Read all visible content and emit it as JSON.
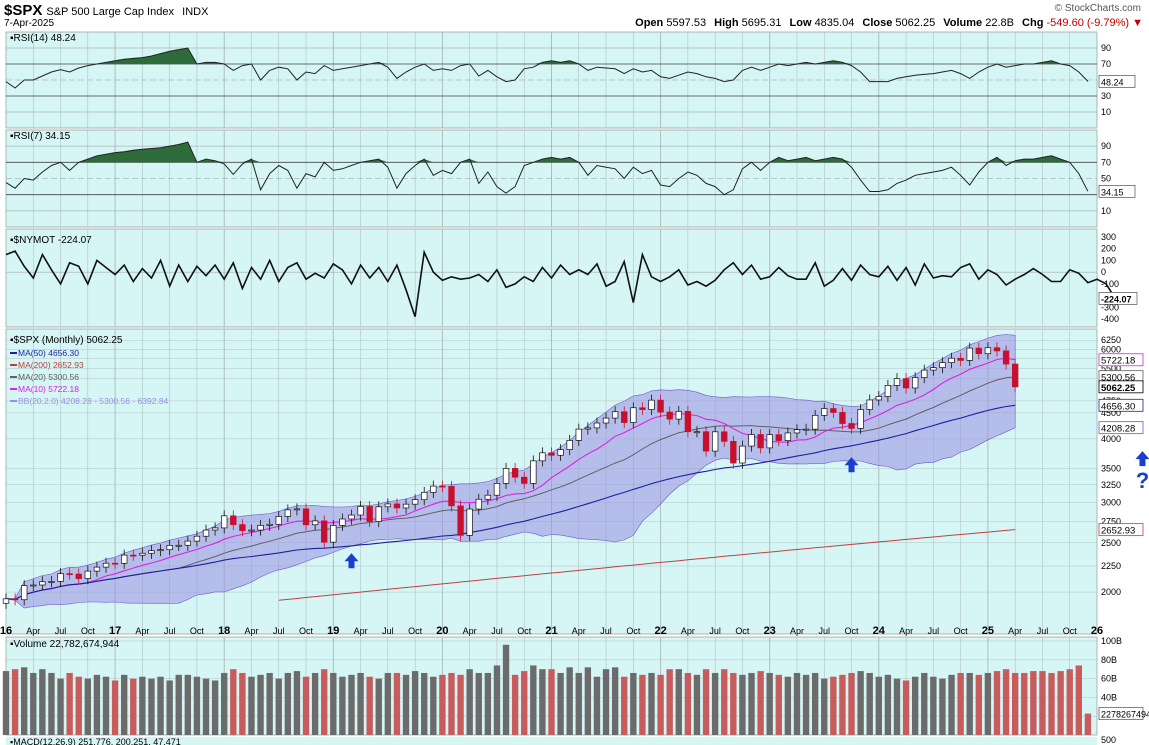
{
  "header": {
    "symbol": "$SPX",
    "name": "S&P 500 Large Cap Index",
    "exchange": "INDX",
    "date": "7-Apr-2025",
    "watermark": "© StockCharts.com",
    "open_label": "Open",
    "open": "5597.53",
    "high_label": "High",
    "high": "5695.31",
    "low_label": "Low",
    "low": "4835.04",
    "close_label": "Close",
    "close": "5062.25",
    "volume_label": "Volume",
    "volume": "22.8B",
    "chg_label": "Chg",
    "chg": "-549.60 (-9.79%)",
    "chg_arrow": "▼"
  },
  "colors": {
    "panel_bg": "#d6f5f5",
    "grid": "#a9b9b9",
    "rsi_fill": "#2e6b3a",
    "candle_up": "#ffffff",
    "candle_down": "#c8102e",
    "ma50": "#1f1f9e",
    "ma200": "#c04040",
    "ma20": "#606060",
    "ma10": "#e020e0",
    "bb_fill": "#9b8fe0",
    "vol_up": "#6b6b6b",
    "vol_down": "#c85c5c",
    "arrow": "#1a3fd0"
  },
  "chart_data": [
    {
      "type": "line",
      "title": "RSI(14) 48.24",
      "last_value": "48.24",
      "ylim": [
        0,
        100
      ],
      "ticks": [
        "90",
        "70",
        "50",
        "30",
        "10"
      ],
      "overbought": 70,
      "oversold": 30,
      "values": [
        48,
        40,
        50,
        50,
        55,
        60,
        63,
        60,
        65,
        68,
        70,
        72,
        74,
        76,
        77,
        78,
        80,
        83,
        86,
        88,
        90,
        70,
        72,
        72,
        70,
        62,
        68,
        70,
        50,
        62,
        66,
        64,
        50,
        60,
        58,
        68,
        62,
        64,
        66,
        68,
        70,
        72,
        66,
        52,
        60,
        66,
        70,
        62,
        64,
        62,
        68,
        70,
        55,
        62,
        54,
        48,
        50,
        64,
        66,
        72,
        74,
        72,
        74,
        70,
        62,
        66,
        65,
        64,
        58,
        64,
        60,
        62,
        54,
        52,
        56,
        60,
        58,
        54,
        52,
        48,
        50,
        62,
        66,
        62,
        66,
        70,
        68,
        70,
        72,
        70,
        72,
        74,
        72,
        68,
        60,
        48,
        48,
        48,
        52,
        54,
        56,
        57,
        58,
        60,
        62,
        58,
        52,
        60,
        66,
        70,
        66,
        68,
        70,
        70,
        72,
        74,
        70,
        68,
        60,
        48.24
      ]
    },
    {
      "type": "line",
      "title": "RSI(7) 34.15",
      "last_value": "34.15",
      "ylim": [
        0,
        100
      ],
      "ticks": [
        "90",
        "70",
        "50",
        "30",
        "10"
      ],
      "overbought": 70,
      "oversold": 30,
      "values": [
        45,
        38,
        50,
        48,
        58,
        66,
        70,
        60,
        70,
        74,
        78,
        80,
        82,
        83,
        85,
        86,
        87,
        88,
        90,
        92,
        95,
        70,
        74,
        72,
        68,
        55,
        68,
        74,
        36,
        56,
        66,
        60,
        38,
        56,
        52,
        70,
        60,
        62,
        66,
        70,
        72,
        74,
        64,
        38,
        56,
        66,
        74,
        54,
        60,
        56,
        70,
        74,
        44,
        58,
        40,
        32,
        40,
        66,
        70,
        74,
        76,
        74,
        76,
        70,
        54,
        66,
        64,
        62,
        50,
        64,
        56,
        60,
        42,
        40,
        50,
        58,
        54,
        44,
        40,
        30,
        36,
        62,
        70,
        60,
        70,
        76,
        72,
        74,
        76,
        72,
        74,
        76,
        74,
        64,
        48,
        34,
        34,
        36,
        44,
        48,
        54,
        56,
        58,
        60,
        64,
        54,
        42,
        58,
        70,
        76,
        66,
        72,
        74,
        74,
        76,
        78,
        74,
        70,
        56,
        34.15
      ]
    },
    {
      "type": "line",
      "title": "$NYMOT -224.07",
      "last_value": "-224.07",
      "ylim": [
        -400,
        300
      ],
      "ticks": [
        "300",
        "200",
        "100",
        "0",
        "-100",
        "-200",
        "-300",
        "-400"
      ],
      "values": [
        150,
        180,
        50,
        -50,
        150,
        20,
        -100,
        80,
        50,
        -100,
        100,
        40,
        -20,
        60,
        -80,
        30,
        -50,
        100,
        -120,
        60,
        -80,
        50,
        -30,
        60,
        -60,
        80,
        -140,
        40,
        -60,
        100,
        -80,
        40,
        80,
        -60,
        -10,
        -50,
        70,
        20,
        -100,
        60,
        -50,
        40,
        -80,
        60,
        -150,
        -380,
        170,
        0,
        -70,
        -40,
        -60,
        -50,
        -20,
        -80,
        20,
        -130,
        -100,
        -40,
        -80,
        40,
        -50,
        60,
        -20,
        20,
        -20,
        70,
        -120,
        -80,
        90,
        -260,
        150,
        -40,
        -80,
        -40,
        20,
        -110,
        -80,
        -120,
        -70,
        20,
        80,
        -20,
        60,
        -60,
        -40,
        40,
        -30,
        -60,
        -60,
        80,
        -120,
        -70,
        30,
        -70,
        60,
        -20,
        -40,
        50,
        -70,
        40,
        -110,
        70,
        -50,
        -30,
        -40,
        40,
        70,
        -60,
        20,
        -20,
        -110,
        -60,
        -20,
        30,
        -20,
        -80,
        -80,
        20,
        -10,
        -90,
        -60,
        -100,
        -224.07
      ]
    },
    {
      "type": "candlestick",
      "title": "$SPX (Monthly) 5062.25",
      "ylim": [
        1700,
        6400
      ],
      "y_ticks": [
        "6250",
        "6000",
        "5750",
        "5500",
        "5250",
        "4750",
        "4500",
        "4000",
        "3500",
        "3250",
        "3000",
        "2750",
        "2500",
        "2250",
        "2000"
      ],
      "x_tick_labels": [
        "16",
        "Apr",
        "Jul",
        "Oct",
        "17",
        "Apr",
        "Jul",
        "Oct",
        "18",
        "Apr",
        "Jul",
        "Oct",
        "19",
        "Apr",
        "Jul",
        "Oct",
        "20",
        "Apr",
        "Jul",
        "Oct",
        "21",
        "Apr",
        "Jul",
        "Oct",
        "22",
        "Apr",
        "Jul",
        "Oct",
        "23",
        "Apr",
        "Jul",
        "Oct",
        "24",
        "Apr",
        "Jul",
        "Oct",
        "25",
        "Apr",
        "Jul",
        "Oct",
        "26"
      ],
      "x_tick_major": [
        "16",
        "17",
        "18",
        "19",
        "20",
        "21",
        "22",
        "23",
        "24",
        "25",
        "26"
      ],
      "x_range_months": [
        0,
        120
      ],
      "overlays": [
        {
          "name": "MA(50)",
          "last": "4656.30",
          "color_key": "ma50"
        },
        {
          "name": "MA(200)",
          "last": "2652.93",
          "color_key": "ma200"
        },
        {
          "name": "MA(20)",
          "last": "5300.56",
          "color_key": "ma20"
        },
        {
          "name": "MA(10)",
          "last": "5722.18",
          "color_key": "ma10"
        },
        {
          "name": "BB(20,2.0)",
          "last": "4208.28 - 5300.56 - 6392.84",
          "color_key": "bb_fill"
        }
      ],
      "value_tags": [
        "5722.18",
        "5300.56",
        "5062.25",
        "4656.30",
        "4208.28",
        "2652.93"
      ],
      "closes": [
        1940,
        1932,
        2060,
        2065,
        2096,
        2099,
        2174,
        2170,
        2126,
        2199,
        2239,
        2279,
        2278,
        2364,
        2363,
        2384,
        2412,
        2423,
        2470,
        2472,
        2519,
        2575,
        2648,
        2674,
        2824,
        2714,
        2641,
        2648,
        2705,
        2718,
        2816,
        2901,
        2914,
        2712,
        2760,
        2507,
        2704,
        2784,
        2834,
        2946,
        2752,
        2942,
        2980,
        2926,
        2977,
        3038,
        3141,
        3231,
        3226,
        2954,
        2585,
        2912,
        3044,
        3100,
        3271,
        3500,
        3363,
        3270,
        3622,
        3756,
        3714,
        3811,
        3973,
        4181,
        4204,
        4298,
        4395,
        4523,
        4307,
        4605,
        4567,
        4766,
        4516,
        4374,
        4530,
        4132,
        4132,
        3785,
        4130,
        3955,
        3586,
        3872,
        4080,
        3840,
        4077,
        3970,
        4109,
        4169,
        4180,
        4450,
        4589,
        4508,
        4288,
        4194,
        4568,
        4770,
        4846,
        5096,
        5254,
        5036,
        5278,
        5460,
        5522,
        5648,
        5762,
        5705,
        6032,
        5881,
        6041,
        5955,
        5612,
        5062.25
      ],
      "arrows": [
        {
          "month": 38,
          "label": ""
        },
        {
          "month": 93,
          "label": ""
        },
        {
          "month": 125,
          "label": "?"
        }
      ]
    },
    {
      "type": "bar",
      "title": "Volume 22,782,674,944",
      "ylim": [
        0,
        100
      ],
      "y_ticks": [
        "100B",
        "80B",
        "60B",
        "40B",
        "20B"
      ],
      "value_tag": "22782674944",
      "values": [
        68,
        70,
        72,
        66,
        70,
        66,
        60,
        66,
        62,
        60,
        64,
        62,
        58,
        64,
        60,
        62,
        60,
        62,
        58,
        64,
        64,
        62,
        60,
        58,
        66,
        70,
        66,
        62,
        64,
        66,
        60,
        66,
        68,
        62,
        66,
        70,
        66,
        62,
        64,
        66,
        62,
        60,
        66,
        66,
        64,
        68,
        66,
        62,
        64,
        66,
        64,
        70,
        66,
        66,
        74,
        96,
        64,
        68,
        74,
        70,
        70,
        66,
        72,
        66,
        72,
        62,
        70,
        72,
        62,
        66,
        64,
        66,
        64,
        70,
        70,
        66,
        64,
        70,
        66,
        70,
        66,
        64,
        66,
        68,
        66,
        64,
        62,
        66,
        64,
        66,
        60,
        62,
        64,
        66,
        68,
        66,
        62,
        64,
        60,
        58,
        62,
        66,
        62,
        60,
        64,
        66,
        66,
        64,
        66,
        68,
        70,
        66,
        66,
        68,
        68,
        66,
        68,
        70,
        74,
        22.78
      ]
    }
  ],
  "macd_label": "MACD(12,26,9) 251.776, 200.251, 47.471",
  "bottom_tick": "500"
}
